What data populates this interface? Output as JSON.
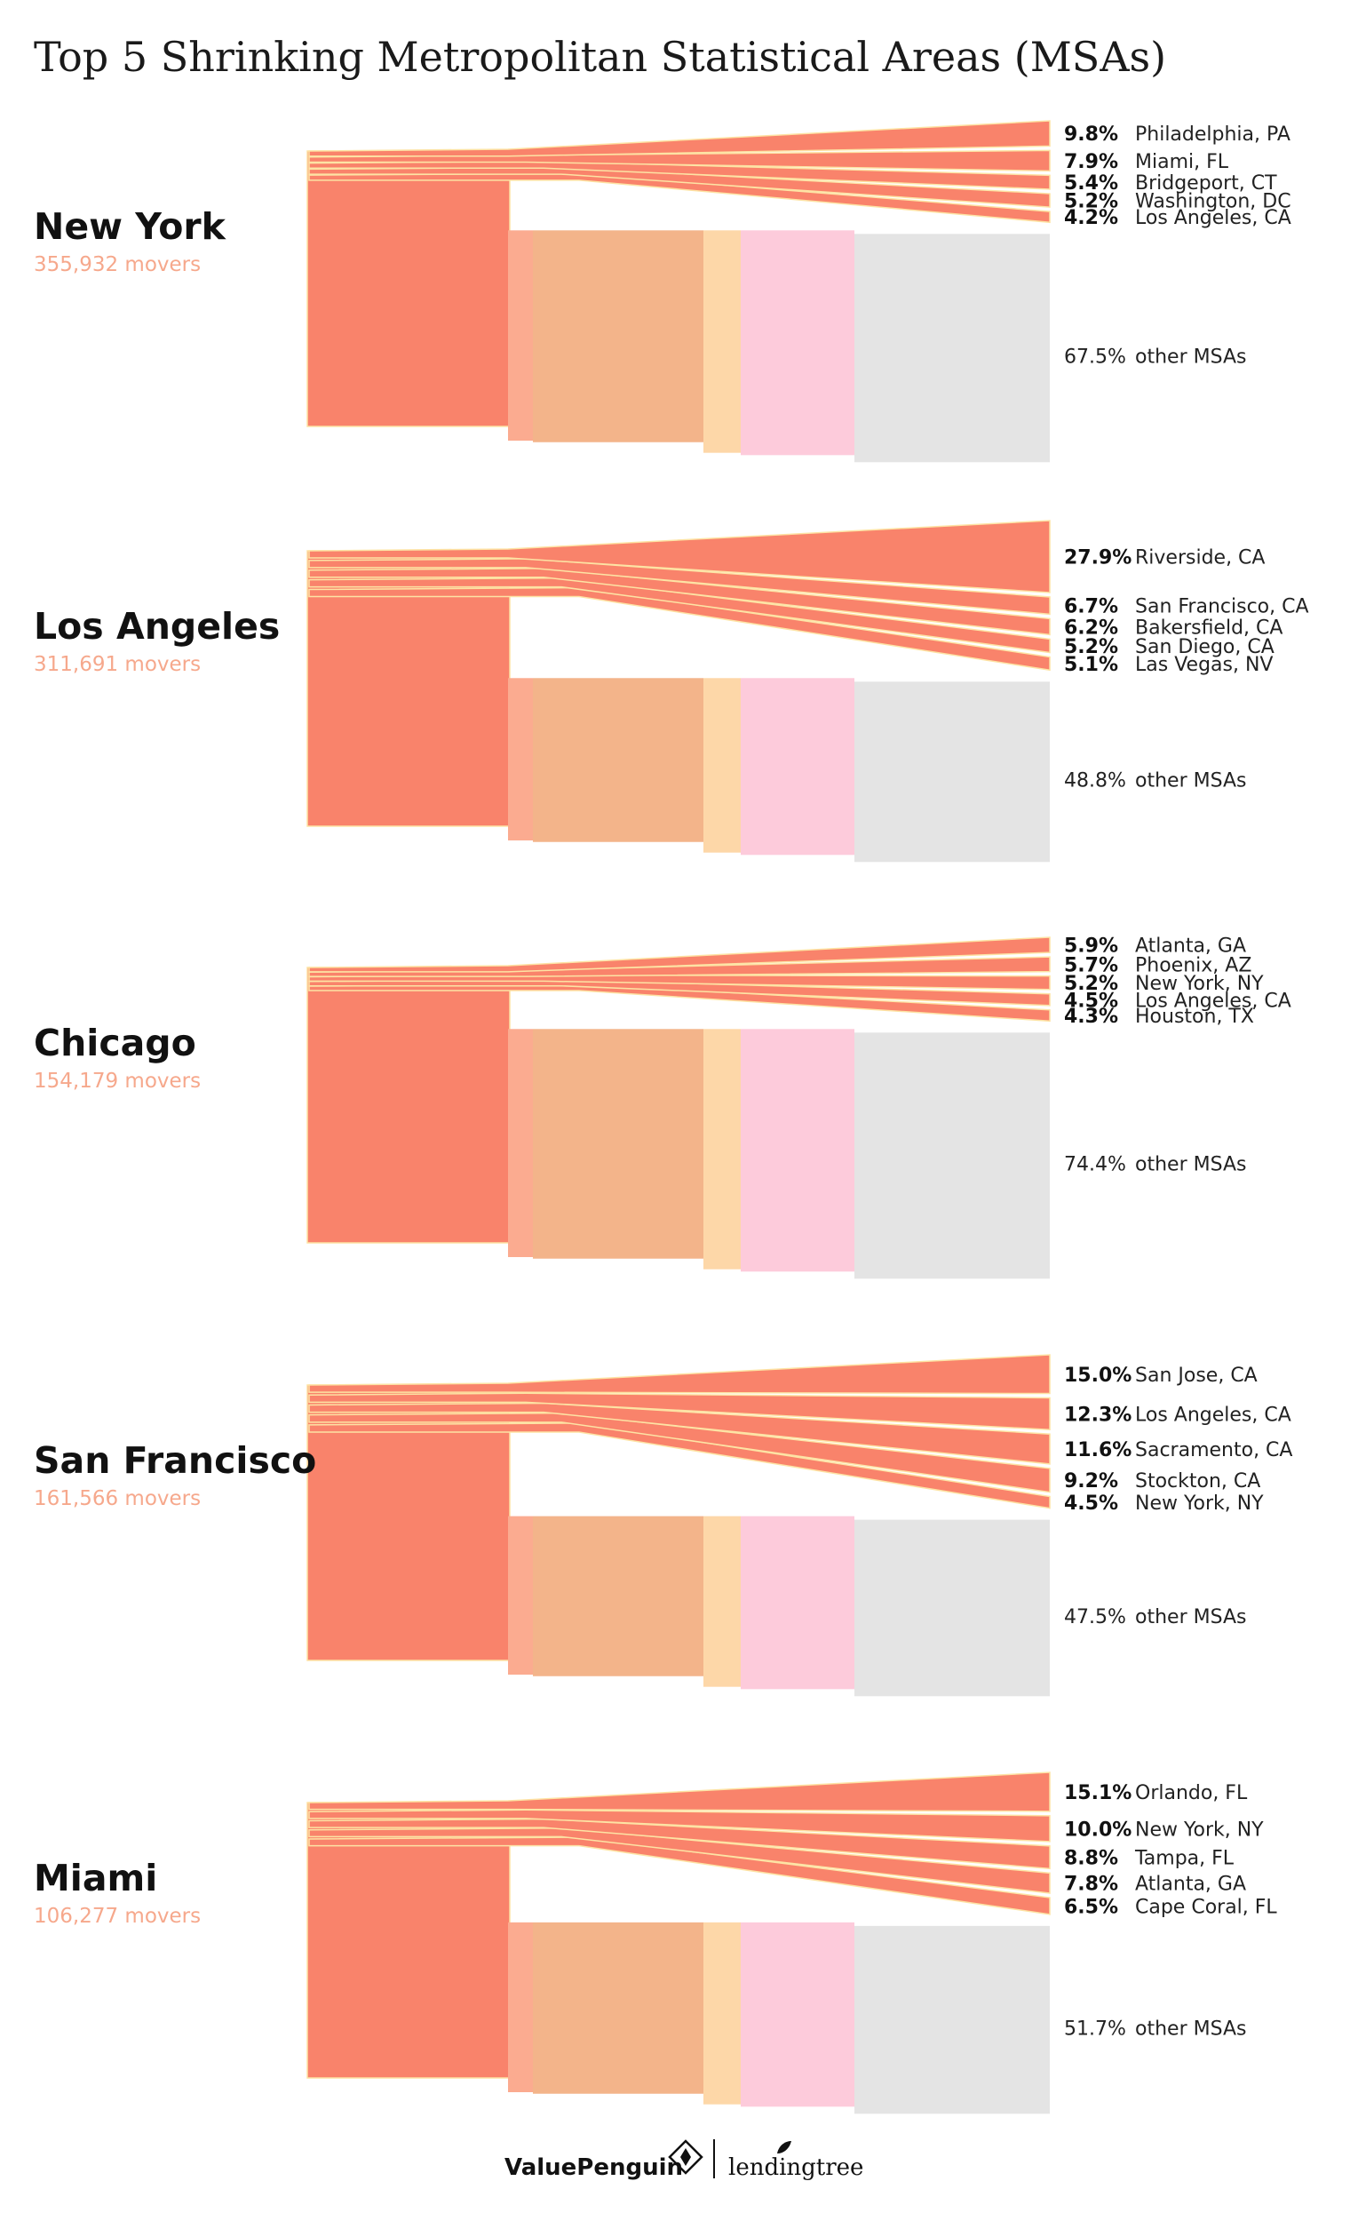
{
  "title": "Top 5 Shrinking Metropolitan Statistical Areas (MSAs)",
  "colors": {
    "flow": "#f9836b",
    "flow_edge": "#fde3a4",
    "band1": "#fbab90",
    "band2": "#f3b48a",
    "band3": "#fdd7a8",
    "band4": "#fdcbdb",
    "band5": "#e4e4e4",
    "movers_text": "#f6a88c"
  },
  "chart_data": {
    "type": "sankey",
    "title": "Top 5 Shrinking Metropolitan Statistical Areas (MSAs)",
    "panels": [
      {
        "origin": "New York",
        "movers": "355,932 movers",
        "flows": [
          {
            "pct": 9.8,
            "label": "9.8%",
            "destination": "Philadelphia, PA"
          },
          {
            "pct": 7.9,
            "label": "7.9%",
            "destination": "Miami, FL"
          },
          {
            "pct": 5.4,
            "label": "5.4%",
            "destination": "Bridgeport, CT"
          },
          {
            "pct": 5.2,
            "label": "5.2%",
            "destination": "Washington, DC"
          },
          {
            "pct": 4.2,
            "label": "4.2%",
            "destination": "Los Angeles, CA"
          }
        ],
        "other": {
          "pct": 67.5,
          "label": "67.5%",
          "destination": "other MSAs"
        }
      },
      {
        "origin": "Los Angeles",
        "movers": "311,691 movers",
        "flows": [
          {
            "pct": 27.9,
            "label": "27.9%",
            "destination": "Riverside, CA"
          },
          {
            "pct": 6.7,
            "label": "6.7%",
            "destination": "San Francisco, CA"
          },
          {
            "pct": 6.2,
            "label": "6.2%",
            "destination": "Bakersfield, CA"
          },
          {
            "pct": 5.2,
            "label": "5.2%",
            "destination": "San Diego, CA"
          },
          {
            "pct": 5.1,
            "label": "5.1%",
            "destination": "Las Vegas, NV"
          }
        ],
        "other": {
          "pct": 48.8,
          "label": "48.8%",
          "destination": "other MSAs"
        }
      },
      {
        "origin": "Chicago",
        "movers": "154,179 movers",
        "flows": [
          {
            "pct": 5.9,
            "label": "5.9%",
            "destination": "Atlanta, GA"
          },
          {
            "pct": 5.7,
            "label": "5.7%",
            "destination": "Phoenix, AZ"
          },
          {
            "pct": 5.2,
            "label": "5.2%",
            "destination": "New York, NY"
          },
          {
            "pct": 4.5,
            "label": "4.5%",
            "destination": "Los Angeles, CA"
          },
          {
            "pct": 4.3,
            "label": "4.3%",
            "destination": "Houston, TX"
          }
        ],
        "other": {
          "pct": 74.4,
          "label": "74.4%",
          "destination": "other MSAs"
        }
      },
      {
        "origin": "San Francisco",
        "movers": "161,566 movers",
        "flows": [
          {
            "pct": 15.0,
            "label": "15.0%",
            "destination": "San Jose, CA"
          },
          {
            "pct": 12.3,
            "label": "12.3%",
            "destination": "Los Angeles, CA"
          },
          {
            "pct": 11.6,
            "label": "11.6%",
            "destination": "Sacramento, CA"
          },
          {
            "pct": 9.2,
            "label": "9.2%",
            "destination": "Stockton, CA"
          },
          {
            "pct": 4.5,
            "label": "4.5%",
            "destination": "New York, NY"
          }
        ],
        "other": {
          "pct": 47.5,
          "label": "47.5%",
          "destination": "other MSAs"
        }
      },
      {
        "origin": "Miami",
        "movers": "106,277 movers",
        "flows": [
          {
            "pct": 15.1,
            "label": "15.1%",
            "destination": "Orlando, FL"
          },
          {
            "pct": 10.0,
            "label": "10.0%",
            "destination": "New York, NY"
          },
          {
            "pct": 8.8,
            "label": "8.8%",
            "destination": "Tampa, FL"
          },
          {
            "pct": 7.8,
            "label": "7.8%",
            "destination": "Atlanta, GA"
          },
          {
            "pct": 6.5,
            "label": "6.5%",
            "destination": "Cape Coral, FL"
          }
        ],
        "other": {
          "pct": 51.7,
          "label": "51.7%",
          "destination": "other MSAs"
        }
      }
    ]
  },
  "footer": {
    "brand1": "ValuePenguin",
    "brand2": "lendingtree",
    "brand1_icon": "penguin-diamond-icon",
    "brand2_icon": "leaf-icon"
  }
}
